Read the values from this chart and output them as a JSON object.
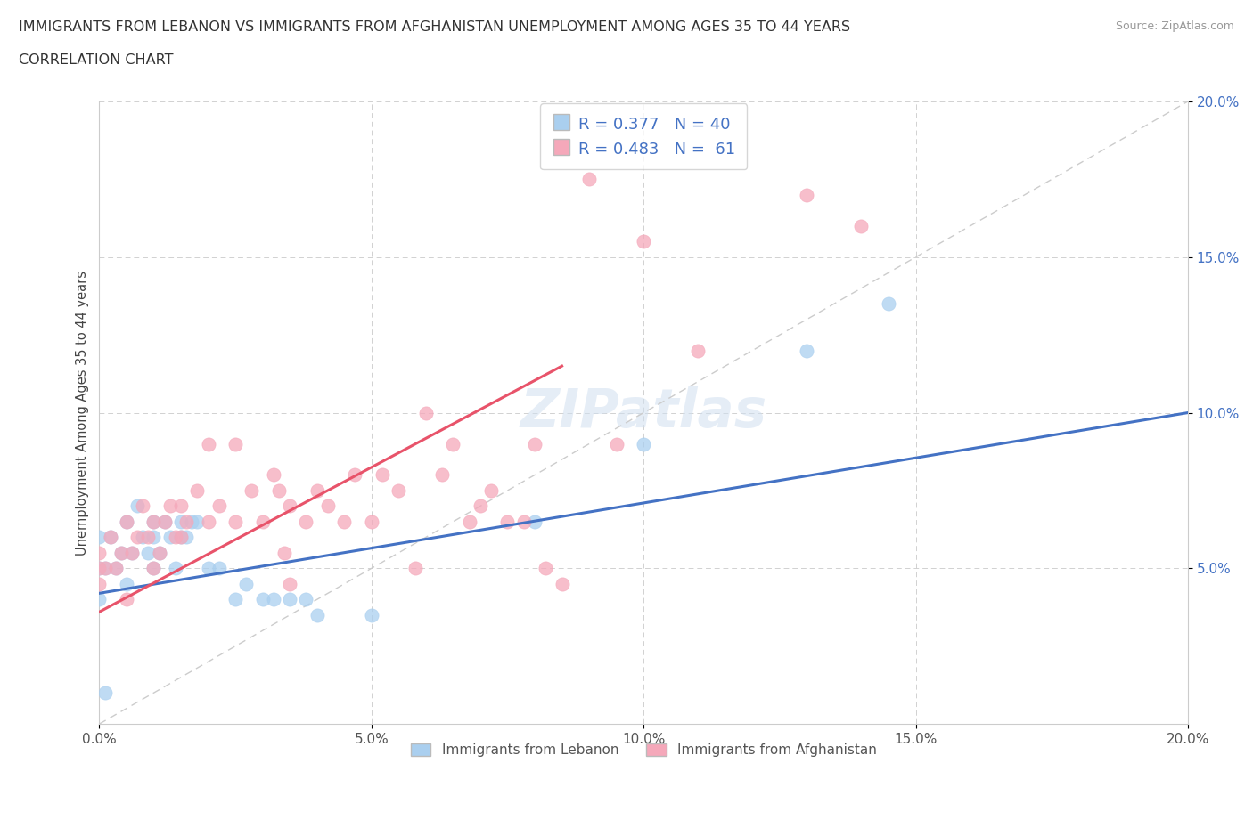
{
  "title_line1": "IMMIGRANTS FROM LEBANON VS IMMIGRANTS FROM AFGHANISTAN UNEMPLOYMENT AMONG AGES 35 TO 44 YEARS",
  "title_line2": "CORRELATION CHART",
  "source": "Source: ZipAtlas.com",
  "ylabel": "Unemployment Among Ages 35 to 44 years",
  "xmin": 0.0,
  "xmax": 0.2,
  "ymin": 0.0,
  "ymax": 0.2,
  "lebanon_color": "#aacfef",
  "afghanistan_color": "#f5a8ba",
  "lebanon_line_color": "#4472c4",
  "afghanistan_line_color": "#e8536a",
  "diag_line_color": "#cccccc",
  "lebanon_R": 0.377,
  "lebanon_N": 40,
  "afghanistan_R": 0.483,
  "afghanistan_N": 61,
  "legend_label_color": "#4472c4",
  "tick_color_y": "#4472c4",
  "tick_color_x": "#555555",
  "watermark_text": "ZIPatlas",
  "lebanon_line_x0": 0.0,
  "lebanon_line_y0": 0.042,
  "lebanon_line_x1": 0.2,
  "lebanon_line_y1": 0.1,
  "afghanistan_line_x0": 0.0,
  "afghanistan_line_y0": 0.036,
  "afghanistan_line_x1": 0.085,
  "afghanistan_line_y1": 0.115,
  "leb_x": [
    0.0,
    0.0,
    0.0,
    0.001,
    0.001,
    0.002,
    0.003,
    0.004,
    0.005,
    0.005,
    0.006,
    0.007,
    0.008,
    0.009,
    0.01,
    0.01,
    0.01,
    0.011,
    0.012,
    0.013,
    0.014,
    0.015,
    0.015,
    0.016,
    0.017,
    0.018,
    0.02,
    0.022,
    0.025,
    0.027,
    0.03,
    0.032,
    0.035,
    0.038,
    0.04,
    0.05,
    0.08,
    0.1,
    0.13,
    0.145
  ],
  "leb_y": [
    0.04,
    0.05,
    0.06,
    0.01,
    0.05,
    0.06,
    0.05,
    0.055,
    0.045,
    0.065,
    0.055,
    0.07,
    0.06,
    0.055,
    0.05,
    0.06,
    0.065,
    0.055,
    0.065,
    0.06,
    0.05,
    0.06,
    0.065,
    0.06,
    0.065,
    0.065,
    0.05,
    0.05,
    0.04,
    0.045,
    0.04,
    0.04,
    0.04,
    0.04,
    0.035,
    0.035,
    0.065,
    0.09,
    0.12,
    0.135
  ],
  "afg_x": [
    0.0,
    0.0,
    0.0,
    0.001,
    0.002,
    0.003,
    0.004,
    0.005,
    0.005,
    0.006,
    0.007,
    0.008,
    0.009,
    0.01,
    0.01,
    0.011,
    0.012,
    0.013,
    0.014,
    0.015,
    0.015,
    0.016,
    0.018,
    0.02,
    0.02,
    0.022,
    0.025,
    0.025,
    0.028,
    0.03,
    0.032,
    0.033,
    0.034,
    0.035,
    0.035,
    0.038,
    0.04,
    0.042,
    0.045,
    0.047,
    0.05,
    0.052,
    0.055,
    0.058,
    0.06,
    0.063,
    0.065,
    0.068,
    0.07,
    0.072,
    0.075,
    0.078,
    0.08,
    0.082,
    0.085,
    0.09,
    0.095,
    0.1,
    0.11,
    0.13,
    0.14
  ],
  "afg_y": [
    0.045,
    0.05,
    0.055,
    0.05,
    0.06,
    0.05,
    0.055,
    0.04,
    0.065,
    0.055,
    0.06,
    0.07,
    0.06,
    0.05,
    0.065,
    0.055,
    0.065,
    0.07,
    0.06,
    0.06,
    0.07,
    0.065,
    0.075,
    0.065,
    0.09,
    0.07,
    0.09,
    0.065,
    0.075,
    0.065,
    0.08,
    0.075,
    0.055,
    0.07,
    0.045,
    0.065,
    0.075,
    0.07,
    0.065,
    0.08,
    0.065,
    0.08,
    0.075,
    0.05,
    0.1,
    0.08,
    0.09,
    0.065,
    0.07,
    0.075,
    0.065,
    0.065,
    0.09,
    0.05,
    0.045,
    0.175,
    0.09,
    0.155,
    0.12,
    0.17,
    0.16
  ]
}
